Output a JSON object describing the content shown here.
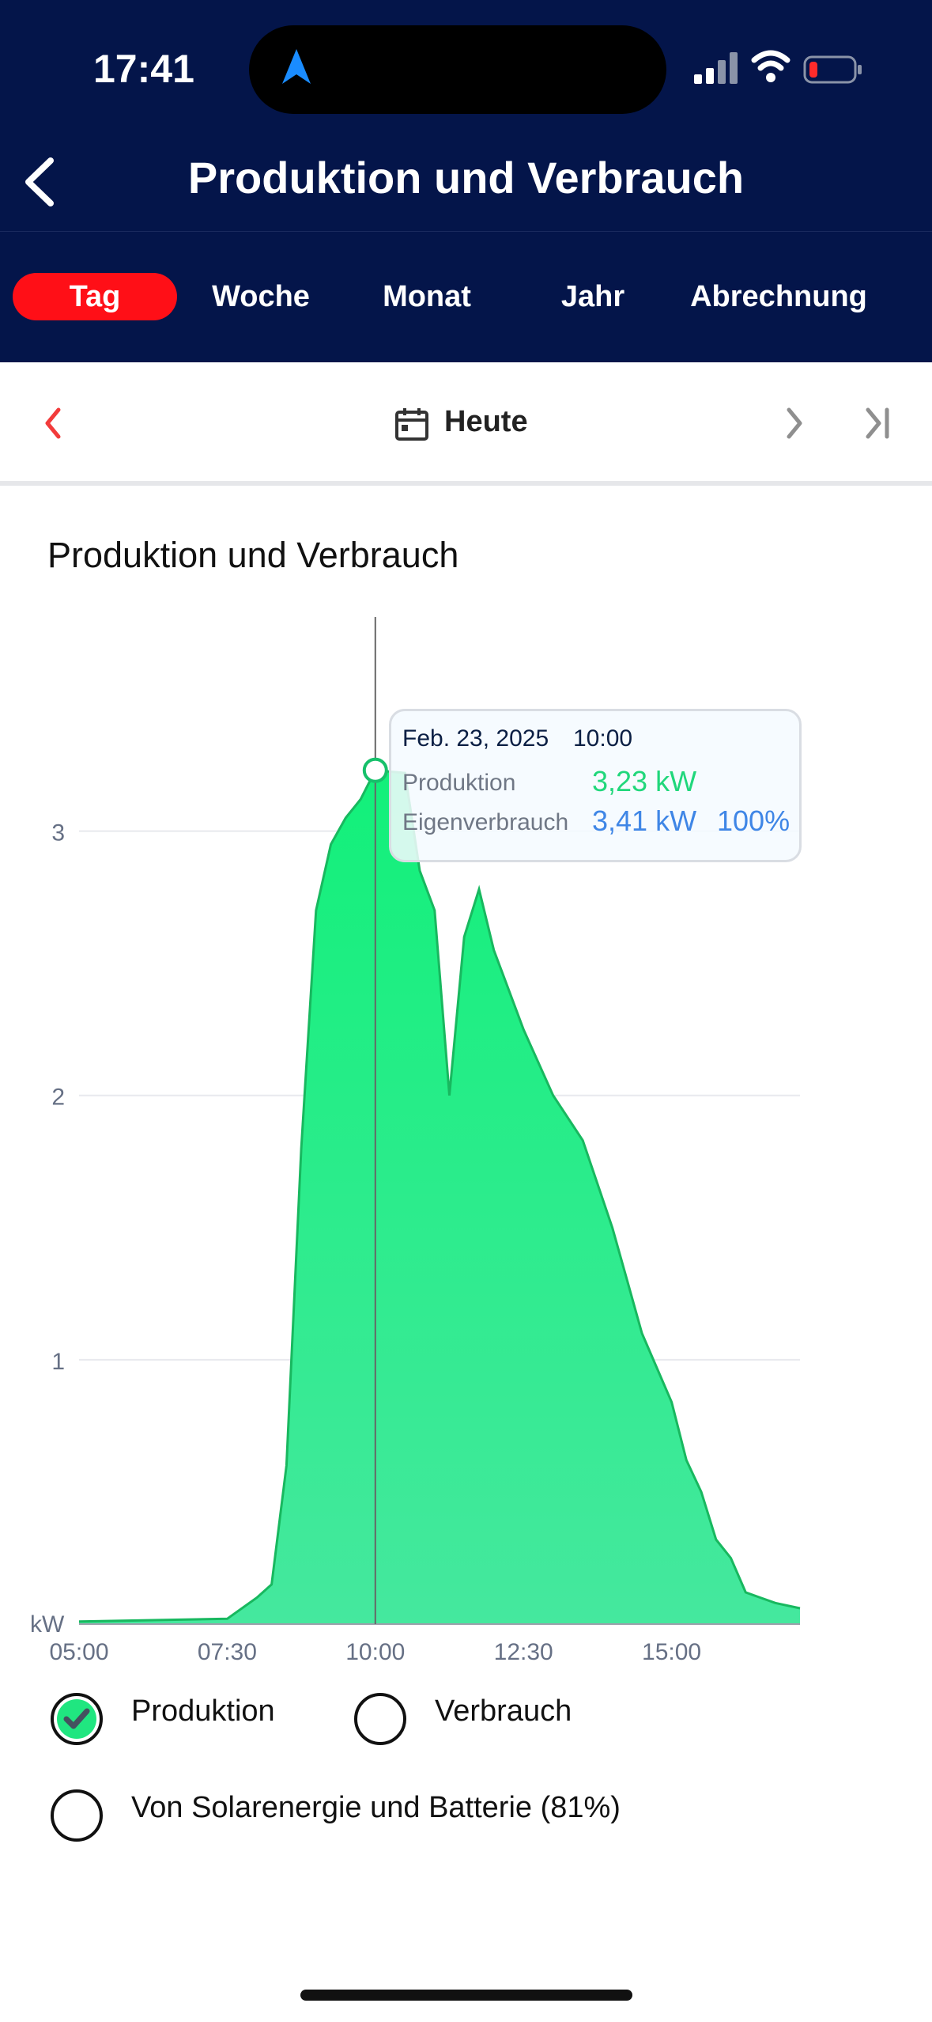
{
  "status_bar": {
    "time": "17:41",
    "icons": [
      "location-arrow-icon",
      "cellular-signal-icon",
      "wifi-icon",
      "battery-low-icon"
    ]
  },
  "header": {
    "title": "Produktion und Verbrauch",
    "back_icon": "chevron-left-icon"
  },
  "tabs": [
    {
      "label": "Tag",
      "active": true
    },
    {
      "label": "Woche",
      "active": false
    },
    {
      "label": "Monat",
      "active": false
    },
    {
      "label": "Jahr",
      "active": false
    },
    {
      "label": "Abrechnung",
      "active": false
    }
  ],
  "date_navigation": {
    "label": "Heute",
    "icons": [
      "chevron-left-icon",
      "calendar-icon",
      "chevron-right-icon",
      "skip-to-end-icon"
    ]
  },
  "section_title": "Produktion und Verbrauch",
  "tooltip": {
    "date": "Feb. 23, 2025",
    "time": "10:00",
    "rows": [
      {
        "label": "Produktion",
        "value": "3,23 kW"
      },
      {
        "label": "Eigenverbrauch",
        "value": "3,41 kW",
        "percent": "100%"
      }
    ]
  },
  "legend": [
    {
      "label": "Produktion",
      "checked": true
    },
    {
      "label": "Verbrauch",
      "checked": false
    },
    {
      "label": "Von Solarenergie und Batterie (81%)",
      "checked": false
    }
  ],
  "colors": {
    "header_bg": "#04154a",
    "active_tab": "#ff0f17",
    "production_fill": "#20e680",
    "production_line": "#18b85f",
    "consumption_text": "#3f86e6"
  },
  "chart_data": {
    "type": "area",
    "xlabel": "",
    "ylabel": "kW",
    "x_ticks": [
      "05:00",
      "07:30",
      "10:00",
      "12:30",
      "15:00"
    ],
    "y_ticks": [
      1,
      2,
      3
    ],
    "xlim": [
      "05:00",
      "17:10"
    ],
    "ylim": [
      0,
      3.75
    ],
    "series": [
      {
        "name": "Produktion",
        "x": [
          "05:00",
          "07:30",
          "08:00",
          "08:15",
          "08:30",
          "08:45",
          "09:00",
          "09:15",
          "09:30",
          "09:45",
          "10:00",
          "10:30",
          "10:45",
          "11:00",
          "11:15",
          "11:30",
          "11:45",
          "12:00",
          "12:15",
          "12:30",
          "13:00",
          "13:30",
          "14:00",
          "14:15",
          "14:30",
          "15:00",
          "15:15",
          "15:30",
          "15:45",
          "16:00",
          "16:15",
          "16:30",
          "16:45",
          "17:10"
        ],
        "values": [
          0.01,
          0.02,
          0.1,
          0.15,
          0.6,
          1.8,
          2.7,
          2.95,
          3.05,
          3.12,
          3.23,
          3.22,
          2.85,
          2.7,
          2.0,
          2.6,
          2.78,
          2.55,
          2.4,
          2.25,
          2.0,
          1.83,
          1.5,
          1.3,
          1.1,
          0.84,
          0.62,
          0.5,
          0.32,
          0.25,
          0.12,
          0.1,
          0.08,
          0.06
        ]
      }
    ],
    "highlight": {
      "x": "10:00",
      "value": 3.23
    },
    "grid": true
  }
}
